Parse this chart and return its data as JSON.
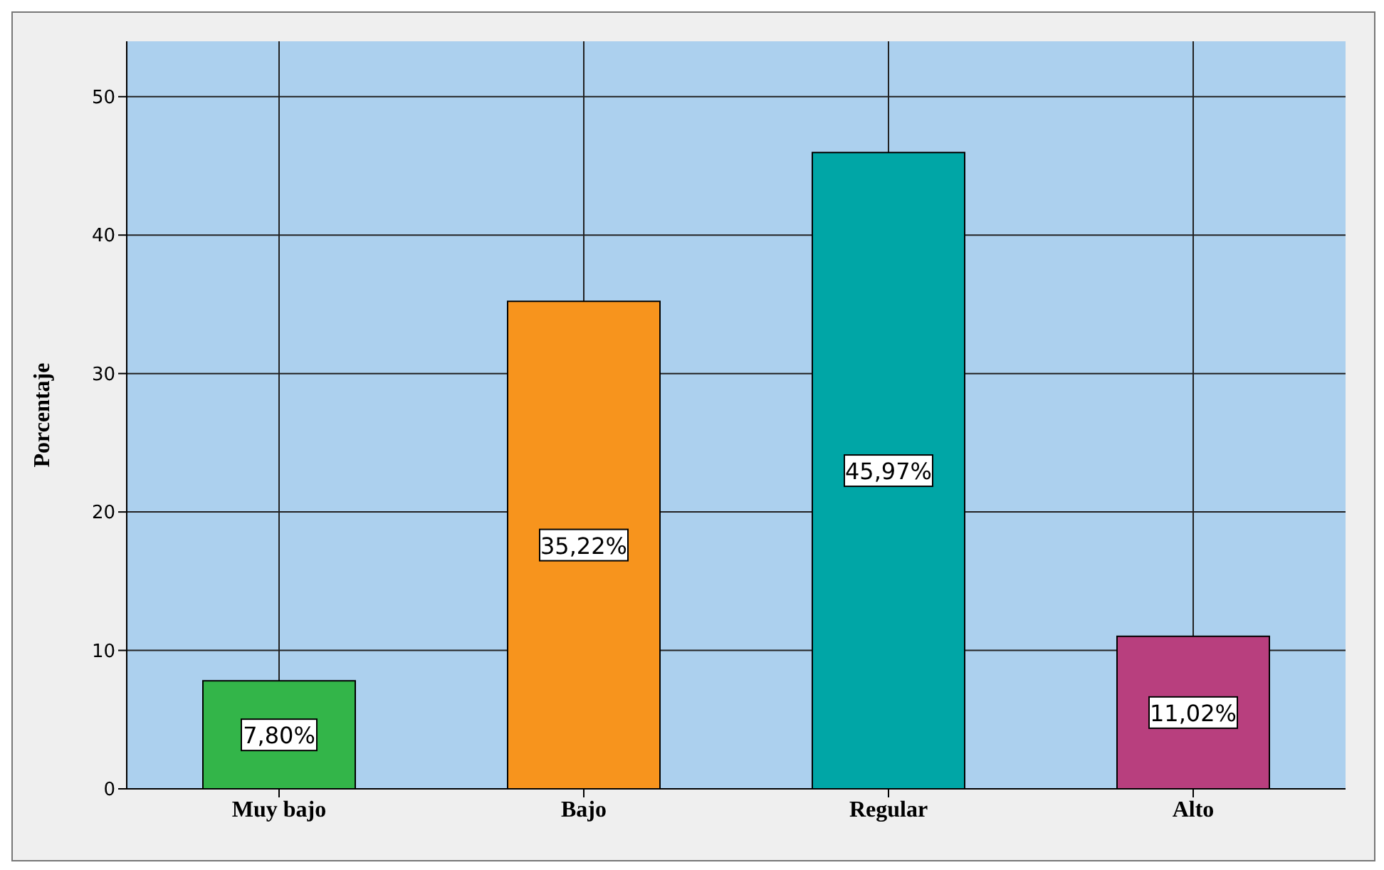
{
  "chart_data": {
    "type": "bar",
    "ylabel": "Porcentaje",
    "categories": [
      "Muy bajo",
      "Bajo",
      "Regular",
      "Alto"
    ],
    "values": [
      7.8,
      35.22,
      45.97,
      11.02
    ],
    "colors": [
      "#33b549",
      "#f7941d",
      "#00a6a6",
      "#b83f7e"
    ],
    "value_labels": [
      "7,80%",
      "35,22%",
      "45,97%",
      "11,02%"
    ],
    "ylim": [
      0,
      54
    ],
    "yticks": [
      0,
      10,
      20,
      30,
      40,
      50
    ],
    "grid": true
  }
}
